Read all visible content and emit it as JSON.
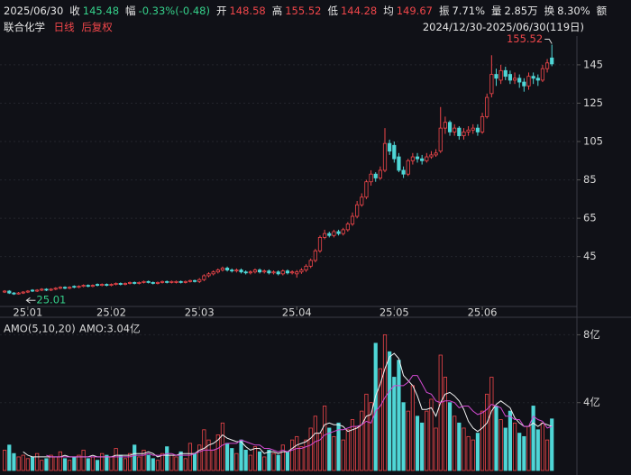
{
  "header": {
    "date": "2025/06/30",
    "fields": [
      {
        "label": "收",
        "value": "145.48",
        "color": "#35d08a"
      },
      {
        "label": "幅",
        "value": "-0.33%(-0.48)",
        "color": "#35d08a"
      },
      {
        "label": "开",
        "value": "148.58",
        "color": "#f0464a"
      },
      {
        "label": "高",
        "value": "155.52",
        "color": "#f0464a"
      },
      {
        "label": "低",
        "value": "144.28",
        "color": "#f0464a"
      },
      {
        "label": "均",
        "value": "149.67",
        "color": "#f0464a"
      },
      {
        "label": "振",
        "value": "7.71%",
        "color": "#e6e6e6"
      },
      {
        "label": "量",
        "value": "2.85万",
        "color": "#e6e6e6"
      },
      {
        "label": "换",
        "value": "8.30%",
        "color": "#e6e6e6"
      },
      {
        "label": "额"
      }
    ],
    "stock": "联合化学",
    "period": "日线",
    "adjust": "后复权",
    "range": "2024/12/30-2025/06/30(119日)"
  },
  "chart_data": [
    {
      "type": "candlestick",
      "up_color": "#f0464a",
      "down_color": "#4fd6d6",
      "xlim": [
        -1,
        123.4
      ],
      "ylim": [
        19,
        160
      ],
      "yticks": [
        45,
        65,
        85,
        105,
        125,
        145
      ],
      "xticks": [
        {
          "value": 5,
          "label": "25.01"
        },
        {
          "value": 23,
          "label": "25.02"
        },
        {
          "value": 42,
          "label": "25.03"
        },
        {
          "value": 63,
          "label": "25.04"
        },
        {
          "value": 84,
          "label": "25.05"
        },
        {
          "value": 103,
          "label": "25.06"
        }
      ],
      "max_index": 118,
      "min_index": 2,
      "open": [
        26.5,
        27,
        26,
        25.5,
        26,
        26.5,
        27.5,
        27,
        27.5,
        28,
        27.5,
        28,
        28.5,
        29,
        28.5,
        29.5,
        29,
        29.5,
        30,
        29.5,
        30.5,
        30,
        30.5,
        30,
        30.5,
        31,
        30.5,
        31,
        31.5,
        31,
        31.5,
        32,
        31.5,
        31,
        31.5,
        32,
        31.5,
        31.5,
        32,
        31.5,
        32,
        32.5,
        32,
        33,
        35,
        36,
        37,
        38,
        39,
        38,
        37.5,
        38,
        37,
        36.5,
        37,
        38,
        37,
        37.5,
        36.5,
        37,
        36,
        37.5,
        36.5,
        36,
        37,
        38,
        40,
        43,
        48,
        55,
        57,
        56,
        58,
        57,
        59,
        62,
        66,
        72,
        76,
        84,
        88,
        86,
        90,
        104,
        103,
        97,
        90,
        88,
        95,
        97,
        96,
        95,
        97,
        98,
        100,
        112,
        115,
        110,
        112,
        108,
        110,
        111,
        112,
        110,
        118,
        130,
        140,
        137,
        142,
        140,
        137,
        138,
        136,
        134,
        139,
        138,
        137,
        143,
        148.58
      ],
      "high": [
        27.5,
        27.5,
        26.5,
        26.5,
        27,
        27.5,
        28,
        28,
        28.5,
        28.5,
        28.5,
        29,
        29.5,
        29.5,
        29.5,
        30,
        30,
        30.5,
        30.5,
        30.5,
        31,
        31,
        31,
        31,
        31.5,
        31.5,
        31.5,
        32,
        32,
        32,
        32.5,
        32.5,
        32,
        32,
        32.5,
        32.5,
        32.5,
        32.5,
        32.5,
        32.5,
        33,
        33,
        33.8,
        35.8,
        36.8,
        37.8,
        38.8,
        39.8,
        39.8,
        38.8,
        38.8,
        38.8,
        37.8,
        37.8,
        38.8,
        38.8,
        38.3,
        38.3,
        37.8,
        37.8,
        38.3,
        38.3,
        37.8,
        38,
        39,
        41,
        44,
        49,
        56,
        59,
        58,
        59,
        59,
        60,
        63,
        68,
        74,
        78,
        85,
        90,
        89,
        92,
        112,
        106,
        105,
        99,
        92,
        96,
        99,
        99,
        98,
        99,
        100,
        101,
        123,
        118,
        116,
        114,
        113,
        112,
        113,
        114,
        114,
        120,
        130,
        150,
        143,
        145,
        144,
        142,
        141,
        140,
        138,
        141,
        141,
        140,
        145,
        148,
        155.52
      ],
      "low": [
        26,
        25.5,
        25.01,
        25.2,
        25.5,
        26,
        26.5,
        26.5,
        27,
        27,
        27,
        27.5,
        28,
        28,
        28,
        28.5,
        28.5,
        29,
        29,
        29,
        29.5,
        29.5,
        29.5,
        29.5,
        30,
        30,
        30,
        30.5,
        30.5,
        30.5,
        31,
        31,
        30.5,
        30.5,
        31,
        31,
        31,
        31,
        31,
        31,
        31.5,
        31.5,
        31.2,
        32.2,
        34.2,
        35.2,
        36.2,
        37.2,
        37.2,
        36.7,
        36.7,
        36.2,
        35.7,
        35.7,
        36.2,
        36.2,
        36.2,
        35.7,
        35.7,
        35.2,
        35.2,
        35.7,
        35.7,
        34,
        36,
        37,
        39,
        42,
        47,
        54,
        55,
        55,
        56,
        56,
        58,
        61,
        65,
        71,
        75,
        82,
        84,
        85,
        89,
        98,
        94,
        89,
        86,
        87,
        93,
        94,
        93,
        94,
        96,
        97,
        99,
        109,
        108,
        108,
        106,
        106,
        108,
        109,
        108,
        109,
        117,
        128,
        134,
        135,
        137,
        135,
        135,
        133,
        131,
        132,
        135,
        134,
        136,
        141,
        144.28
      ],
      "close": [
        27,
        26,
        25.5,
        26,
        26.5,
        27,
        27,
        27.5,
        28,
        27.5,
        28,
        28.5,
        29,
        28.5,
        29,
        29,
        29.5,
        30,
        29.5,
        30,
        30,
        30.5,
        30,
        30.5,
        31,
        30.5,
        31,
        31.5,
        31,
        31.5,
        32,
        31.5,
        31,
        31.5,
        32,
        31.5,
        32,
        32,
        31.5,
        32,
        32.5,
        32,
        33,
        35,
        36,
        37,
        38,
        39,
        38,
        37.5,
        38,
        37,
        36.5,
        37,
        38,
        37,
        37.5,
        36.5,
        37,
        36,
        37.5,
        36.5,
        37,
        37,
        38,
        40,
        43,
        48,
        55,
        57,
        56,
        58,
        57,
        59,
        62,
        66,
        72,
        76,
        84,
        88,
        86,
        90,
        104,
        100,
        96,
        90,
        88,
        95,
        97,
        96,
        95,
        97,
        98,
        99,
        112,
        115,
        110,
        112,
        108,
        110,
        111,
        112,
        110,
        118,
        128,
        140,
        138,
        142,
        139,
        137,
        138,
        136,
        134,
        139,
        138,
        137,
        143,
        146,
        145.48
      ]
    },
    {
      "type": "bar",
      "legend": "AMO(5,10,20)",
      "current": "AMO:3.04亿",
      "xlim": [
        -1,
        123.4
      ],
      "ylim": [
        0,
        8.5
      ],
      "yticks": [
        {
          "value": 4,
          "label": "4亿"
        },
        {
          "value": 8,
          "label": "8亿"
        }
      ],
      "values": [
        1.2,
        1.5,
        1.0,
        0.8,
        0.9,
        0.7,
        0.8,
        1.0,
        0.6,
        0.7,
        0.9,
        0.8,
        1.1,
        0.7,
        0.6,
        0.8,
        0.9,
        1.2,
        0.7,
        0.8,
        0.6,
        1.0,
        0.9,
        0.8,
        1.3,
        0.9,
        0.7,
        1.0,
        1.5,
        0.8,
        1.2,
        0.9,
        0.7,
        0.6,
        1.0,
        1.4,
        0.9,
        0.8,
        1.1,
        0.7,
        1.6,
        1.0,
        1.5,
        2.4,
        1.8,
        1.2,
        2.1,
        2.8,
        1.6,
        1.3,
        1.0,
        1.8,
        1.2,
        0.9,
        1.4,
        1.1,
        0.8,
        1.2,
        1.0,
        0.9,
        1.5,
        1.1,
        1.8,
        2.0,
        1.4,
        1.8,
        2.5,
        3.2,
        2.2,
        3.8,
        2.5,
        2.0,
        2.8,
        1.8,
        2.4,
        3.0,
        2.6,
        3.5,
        4.5,
        4.0,
        7.5,
        6.0,
        8.0,
        7.0,
        5.5,
        6.5,
        4.0,
        3.5,
        5.0,
        3.2,
        2.8,
        3.5,
        4.2,
        2.5,
        6.8,
        5.5,
        4.0,
        3.2,
        2.8,
        2.5,
        2.0,
        1.8,
        2.2,
        3.5,
        4.5,
        5.5,
        3.8,
        3.0,
        2.5,
        3.5,
        2.8,
        2.2,
        2.0,
        2.6,
        3.8,
        2.4,
        2.8,
        1.8,
        3.04
      ],
      "lines": [
        {
          "color": "#f2f2f2",
          "values": [
            null,
            null,
            null,
            null,
            1.1,
            0.9,
            0.8,
            0.8,
            0.8,
            0.8,
            0.8,
            0.8,
            0.8,
            0.9,
            0.8,
            0.8,
            0.8,
            0.8,
            0.8,
            0.9,
            0.8,
            0.8,
            0.8,
            0.8,
            0.9,
            0.9,
            0.9,
            0.9,
            1.0,
            1.0,
            1.0,
            1.1,
            1.0,
            0.8,
            0.9,
            0.9,
            0.9,
            0.9,
            1.0,
            1.0,
            1.0,
            1.0,
            1.2,
            1.3,
            1.5,
            1.6,
            1.8,
            2.1,
            1.9,
            1.8,
            1.7,
            1.7,
            1.4,
            1.2,
            1.3,
            1.3,
            1.0,
            1.1,
            1.1,
            1.0,
            1.1,
            1.1,
            1.3,
            1.5,
            1.6,
            1.7,
            1.9,
            2.2,
            2.2,
            2.7,
            2.8,
            2.7,
            2.7,
            2.6,
            2.3,
            2.4,
            2.5,
            2.7,
            3.2,
            3.3,
            4.4,
            5.1,
            6.0,
            6.7,
            6.9,
            6.6,
            5.6,
            5.3,
            5.0,
            4.4,
            3.6,
            3.6,
            3.7,
            3.2,
            4.0,
            4.5,
            4.6,
            4.4,
            4.1,
            3.6,
            2.9,
            2.5,
            2.3,
            2.5,
            2.8,
            3.5,
            3.9,
            4.1,
            3.9,
            3.7,
            3.1,
            2.8,
            2.6,
            2.6,
            2.8,
            2.6,
            2.8,
            2.7,
            2.6
          ]
        },
        {
          "color": "#d24ad2",
          "values": [
            null,
            null,
            null,
            null,
            null,
            null,
            null,
            null,
            null,
            0.9,
            0.8,
            0.8,
            0.8,
            0.8,
            0.8,
            0.8,
            0.8,
            0.8,
            0.8,
            0.8,
            0.8,
            0.8,
            0.8,
            0.8,
            0.8,
            0.8,
            0.8,
            0.8,
            0.9,
            0.9,
            0.9,
            1.0,
            0.9,
            0.9,
            0.9,
            1.0,
            1.0,
            0.9,
            0.9,
            0.9,
            0.9,
            1.0,
            1.1,
            1.2,
            1.2,
            1.2,
            1.3,
            1.5,
            1.6,
            1.6,
            1.6,
            1.8,
            1.7,
            1.6,
            1.5,
            1.5,
            1.3,
            1.3,
            1.2,
            1.1,
            1.2,
            1.1,
            1.2,
            1.3,
            1.3,
            1.4,
            1.5,
            1.7,
            1.8,
            2.1,
            2.2,
            2.3,
            2.4,
            2.4,
            2.5,
            2.6,
            2.6,
            2.7,
            2.9,
            2.8,
            3.5,
            3.8,
            4.3,
            4.7,
            5.0,
            5.0,
            5.0,
            5.2,
            5.6,
            5.6,
            5.1,
            4.6,
            4.5,
            4.1,
            4.0,
            4.1,
            4.1,
            4.0,
            3.7,
            3.8,
            3.8,
            3.5,
            3.3,
            3.4,
            3.6,
            3.9,
            3.8,
            3.7,
            3.2,
            3.2,
            3.0,
            3.0,
            2.6,
            2.6,
            3.2,
            3.0,
            2.9,
            2.5,
            2.6
          ]
        }
      ]
    }
  ]
}
